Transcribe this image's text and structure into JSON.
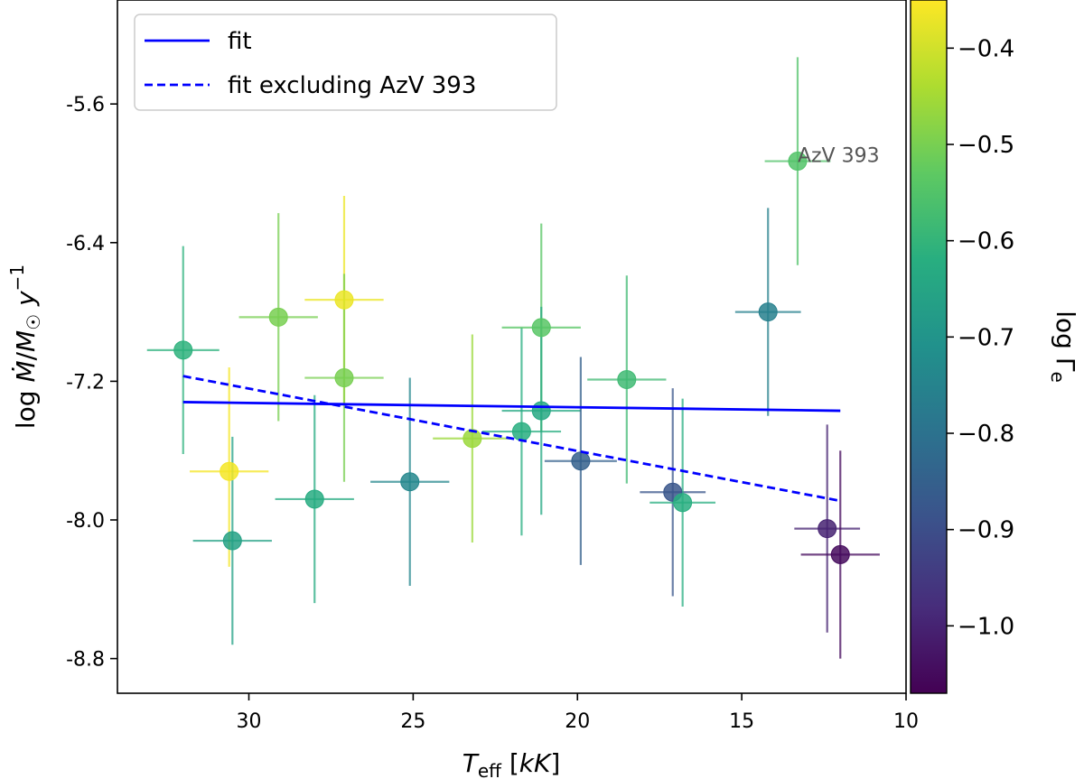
{
  "chart_data": {
    "type": "scatter",
    "xlabel": "T_eff [kK]",
    "ylabel": "log Ṁ/M☉ y⁻¹",
    "xlim": [
      34,
      10
    ],
    "ylim": [
      -9.0,
      -5.0
    ],
    "x_ticks": [
      30,
      25,
      20,
      15,
      10
    ],
    "y_ticks": [
      -5.6,
      -6.4,
      -7.2,
      -8.0,
      -8.8
    ],
    "y_tick_labels": [
      "-5.6",
      "-6.4",
      "-7.2",
      "-8.0",
      "-8.8"
    ],
    "colorbar": {
      "label": "log Γe",
      "colormap": "viridis",
      "range": [
        -1.07,
        -0.35
      ],
      "ticks": [
        -0.4,
        -0.5,
        -0.6,
        -0.7,
        -0.8,
        -0.9,
        -1.0
      ],
      "tick_labels": [
        "−0.4",
        "−0.5",
        "−0.6",
        "−0.7",
        "−0.8",
        "−0.9",
        "−1.0"
      ]
    },
    "legend": {
      "location": "upper-left",
      "entries": [
        {
          "label": "fit",
          "style": "solid",
          "color": "#0000ff"
        },
        {
          "label": "fit excluding AzV 393",
          "style": "dashed",
          "color": "#0000ff"
        }
      ]
    },
    "series": [
      {
        "name": "stars",
        "points": [
          {
            "teff": 32.0,
            "mdot": -7.02,
            "gamma": -0.61,
            "xerr": 1.1,
            "yerr_lo": 0.6,
            "yerr_hi": 0.6
          },
          {
            "teff": 30.6,
            "mdot": -7.72,
            "gamma": -0.36,
            "xerr": 1.2,
            "yerr_lo": 0.55,
            "yerr_hi": 0.6
          },
          {
            "teff": 30.5,
            "mdot": -8.12,
            "gamma": -0.66,
            "xerr": 1.2,
            "yerr_lo": 0.6,
            "yerr_hi": 0.6
          },
          {
            "teff": 29.1,
            "mdot": -6.83,
            "gamma": -0.5,
            "xerr": 1.2,
            "yerr_lo": 0.6,
            "yerr_hi": 0.6
          },
          {
            "teff": 28.0,
            "mdot": -7.88,
            "gamma": -0.63,
            "xerr": 1.2,
            "yerr_lo": 0.6,
            "yerr_hi": 0.6
          },
          {
            "teff": 27.1,
            "mdot": -6.73,
            "gamma": -0.37,
            "xerr": 1.2,
            "yerr_lo": 0.6,
            "yerr_hi": 0.6
          },
          {
            "teff": 27.1,
            "mdot": -7.18,
            "gamma": -0.5,
            "xerr": 1.2,
            "yerr_lo": 0.6,
            "yerr_hi": 0.6
          },
          {
            "teff": 25.1,
            "mdot": -7.78,
            "gamma": -0.74,
            "xerr": 1.2,
            "yerr_lo": 0.6,
            "yerr_hi": 0.6
          },
          {
            "teff": 23.2,
            "mdot": -7.53,
            "gamma": -0.46,
            "xerr": 1.2,
            "yerr_lo": 0.6,
            "yerr_hi": 0.6
          },
          {
            "teff": 21.7,
            "mdot": -7.49,
            "gamma": -0.62,
            "xerr": 1.2,
            "yerr_lo": 0.6,
            "yerr_hi": 0.6
          },
          {
            "teff": 21.1,
            "mdot": -6.89,
            "gamma": -0.54,
            "xerr": 1.2,
            "yerr_lo": 0.6,
            "yerr_hi": 0.6
          },
          {
            "teff": 21.1,
            "mdot": -7.37,
            "gamma": -0.64,
            "xerr": 1.2,
            "yerr_lo": 0.6,
            "yerr_hi": 0.6
          },
          {
            "teff": 19.9,
            "mdot": -7.66,
            "gamma": -0.85,
            "xerr": 1.1,
            "yerr_lo": 0.6,
            "yerr_hi": 0.6
          },
          {
            "teff": 18.5,
            "mdot": -7.19,
            "gamma": -0.58,
            "xerr": 1.2,
            "yerr_lo": 0.6,
            "yerr_hi": 0.6
          },
          {
            "teff": 17.1,
            "mdot": -7.84,
            "gamma": -0.88,
            "xerr": 1.0,
            "yerr_lo": 0.6,
            "yerr_hi": 0.6
          },
          {
            "teff": 16.8,
            "mdot": -7.9,
            "gamma": -0.62,
            "xerr": 1.0,
            "yerr_lo": 0.6,
            "yerr_hi": 0.6
          },
          {
            "teff": 14.2,
            "mdot": -6.8,
            "gamma": -0.76,
            "xerr": 1.0,
            "yerr_lo": 0.6,
            "yerr_hi": 0.6
          },
          {
            "teff": 13.3,
            "mdot": -5.93,
            "gamma": -0.55,
            "xerr": 1.0,
            "yerr_lo": 0.6,
            "yerr_hi": 0.6
          },
          {
            "teff": 12.4,
            "mdot": -8.05,
            "gamma": -1.0,
            "xerr": 1.0,
            "yerr_lo": 0.6,
            "yerr_hi": 0.6
          },
          {
            "teff": 12.0,
            "mdot": -8.2,
            "gamma": -1.05,
            "xerr": 1.2,
            "yerr_lo": 0.6,
            "yerr_hi": 0.6
          }
        ]
      },
      {
        "name": "fit",
        "style": "solid",
        "x": [
          32.0,
          12.0
        ],
        "y": [
          -7.32,
          -7.37
        ]
      },
      {
        "name": "fit excluding AzV 393",
        "style": "dashed",
        "x": [
          32.0,
          12.0
        ],
        "y": [
          -7.17,
          -7.89
        ]
      }
    ],
    "annotations": [
      {
        "text": "AzV 393",
        "teff": 13.3,
        "mdot": -5.93
      }
    ]
  }
}
